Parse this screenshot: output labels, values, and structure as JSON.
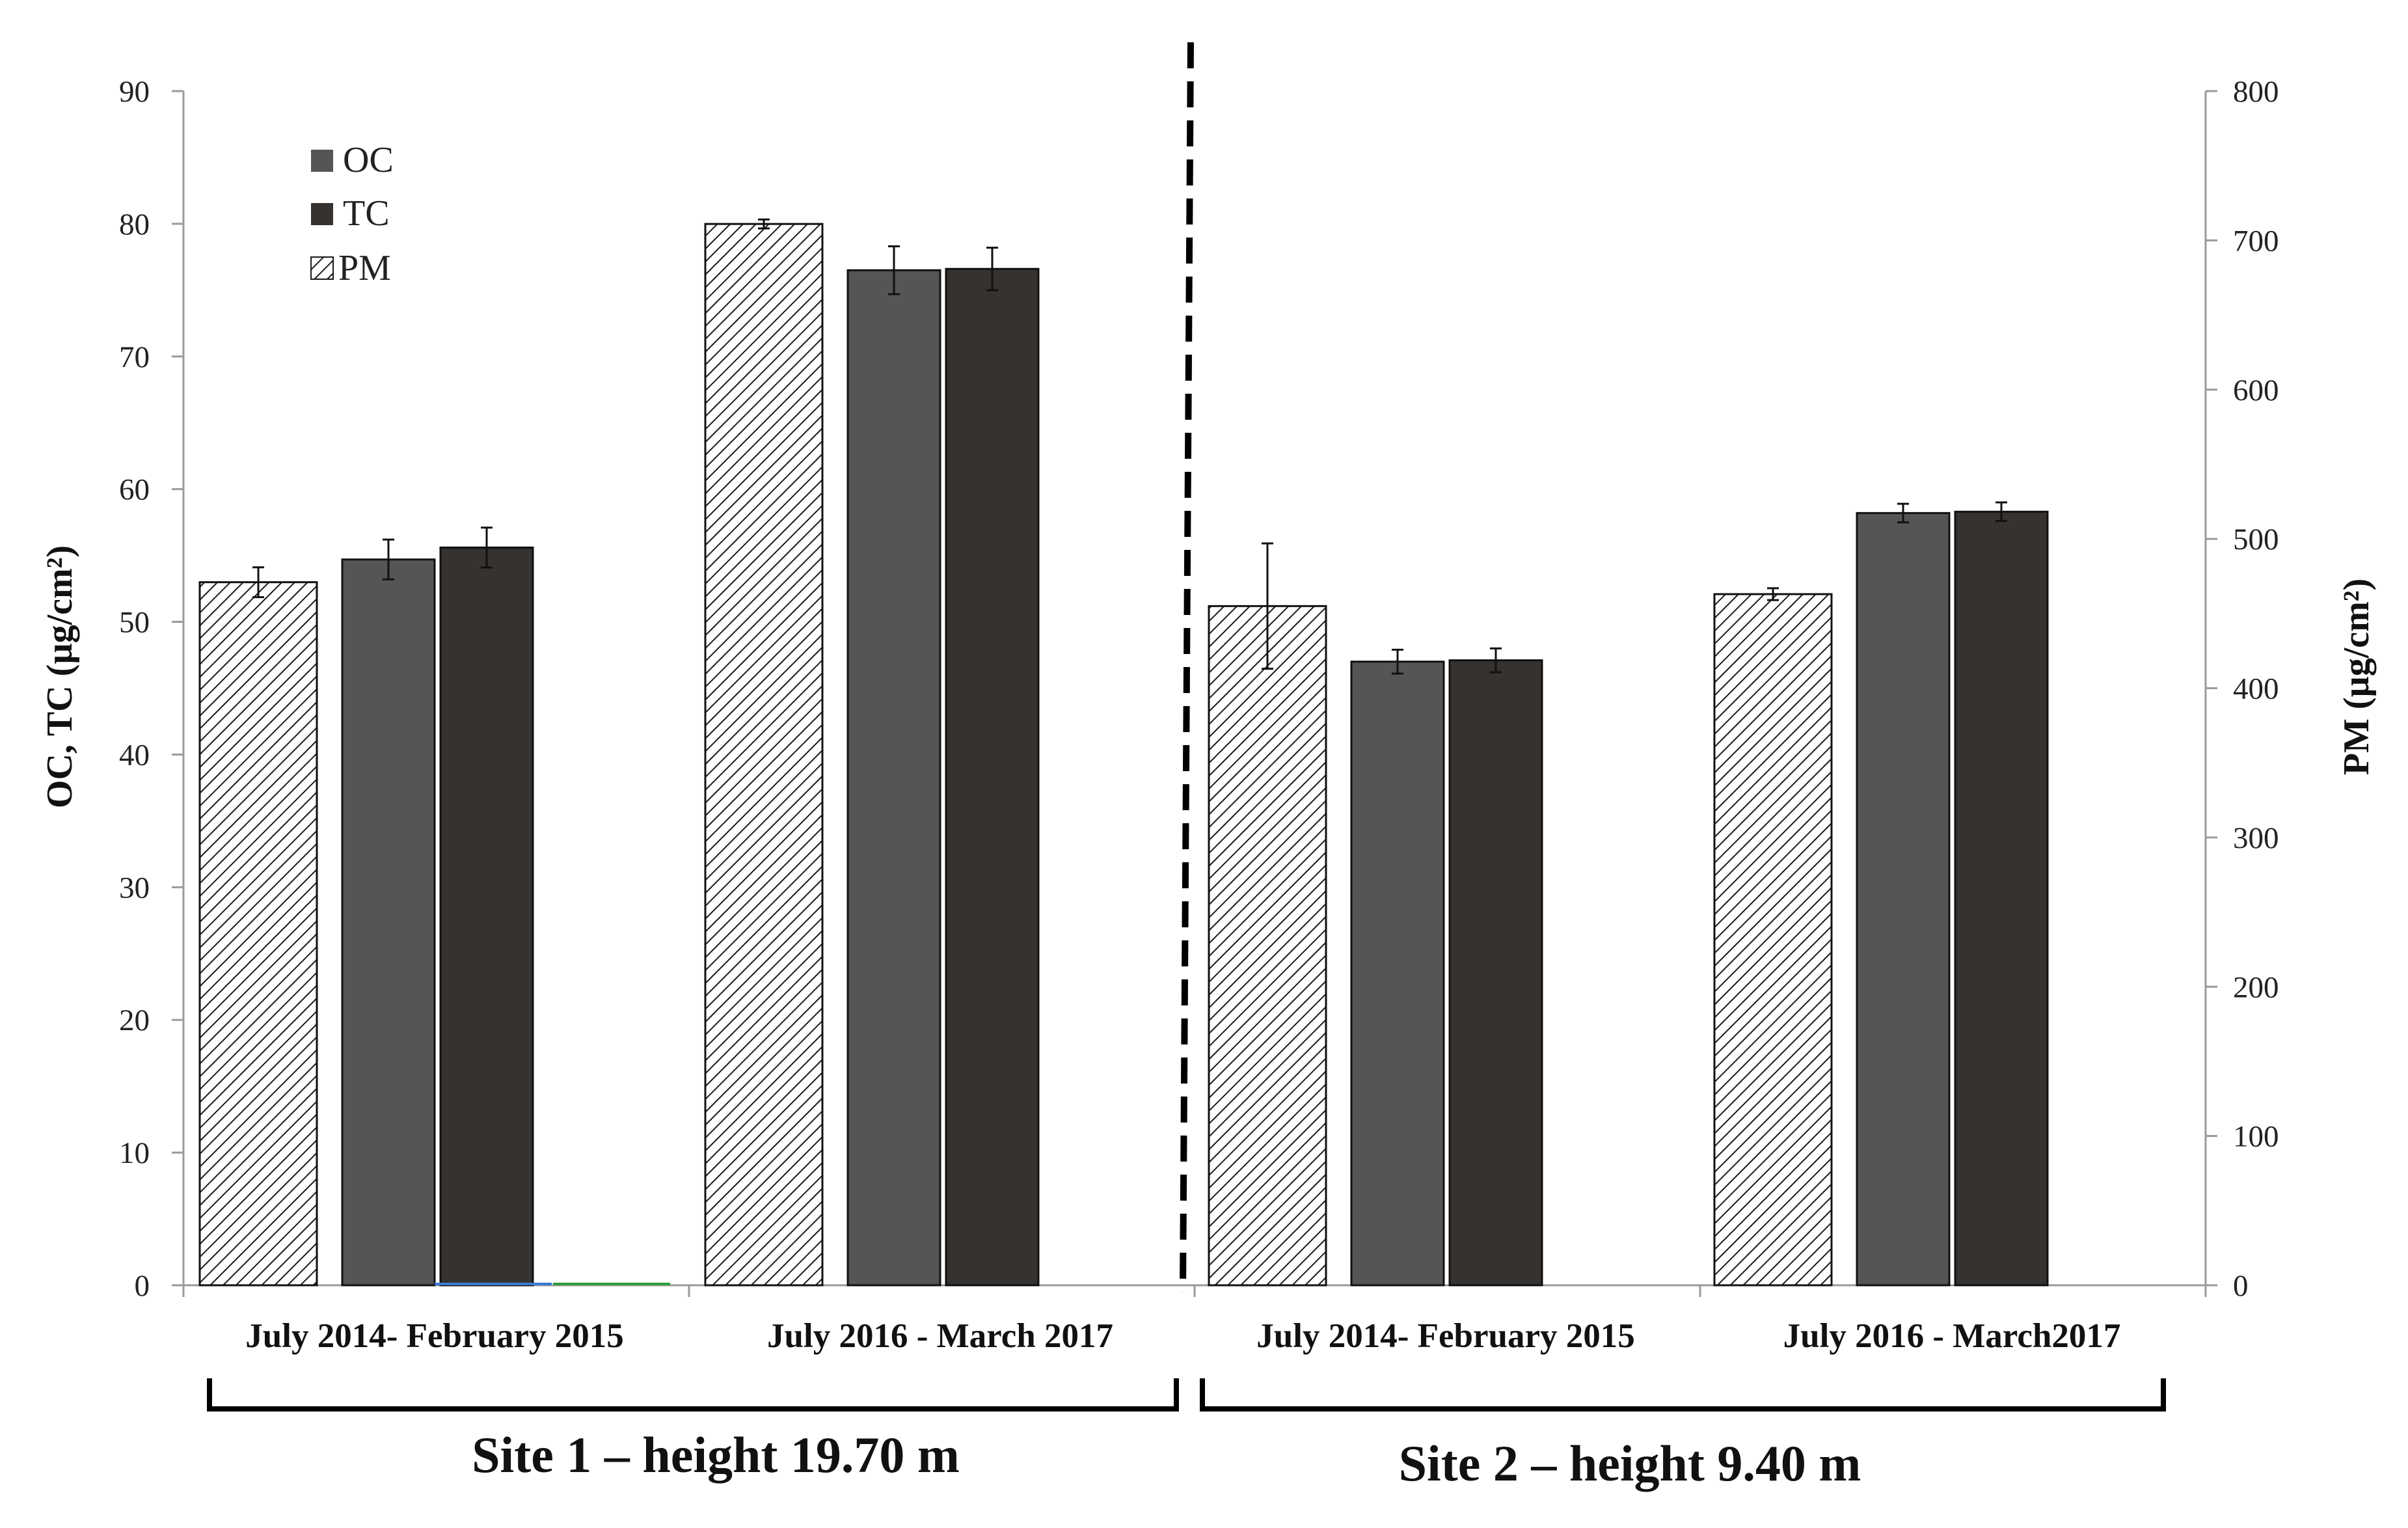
{
  "chart_data": {
    "type": "bar",
    "title": "",
    "ylabel_left": "OC, TC  (µg/cm²)",
    "ylabel_right": "PM  (µg/cm²)",
    "ylim_left": [
      0,
      90
    ],
    "ylim_right": [
      0,
      800
    ],
    "yticks_left": [
      "0",
      "10",
      "20",
      "30",
      "40",
      "50",
      "60",
      "70",
      "80",
      "90"
    ],
    "yticks_right": [
      "0",
      "100",
      "200",
      "300",
      "400",
      "500",
      "600",
      "700",
      "800"
    ],
    "categories": [
      "July 2014- February 2015",
      "July 2016 -  March 2017",
      "July 2014- February 2015",
      "July 2016 -  March2017"
    ],
    "groups": [
      {
        "label": "Site 1 – height 19.70 m",
        "categories": [
          0,
          1
        ]
      },
      {
        "label": "Site 2 – height 9.40 m",
        "categories": [
          2,
          3
        ]
      }
    ],
    "series": [
      {
        "name": "PM",
        "axis": "right",
        "values": [
          471,
          711,
          455,
          463
        ],
        "errors": [
          10,
          3,
          42,
          4
        ]
      },
      {
        "name": "OC",
        "axis": "left",
        "values": [
          54.7,
          76.5,
          47.0,
          58.2
        ],
        "errors": [
          1.5,
          1.8,
          0.9,
          0.7
        ]
      },
      {
        "name": "TC",
        "axis": "left",
        "values": [
          55.6,
          76.6,
          47.1,
          58.3
        ],
        "errors": [
          1.5,
          1.6,
          0.9,
          0.7
        ]
      }
    ],
    "legend": {
      "position": "top-left",
      "entries": [
        "OC",
        "TC",
        "PM"
      ]
    },
    "colors": {
      "OC": "#555555",
      "TC": "#353230",
      "PM_hatch": "#1a1a1a"
    }
  }
}
